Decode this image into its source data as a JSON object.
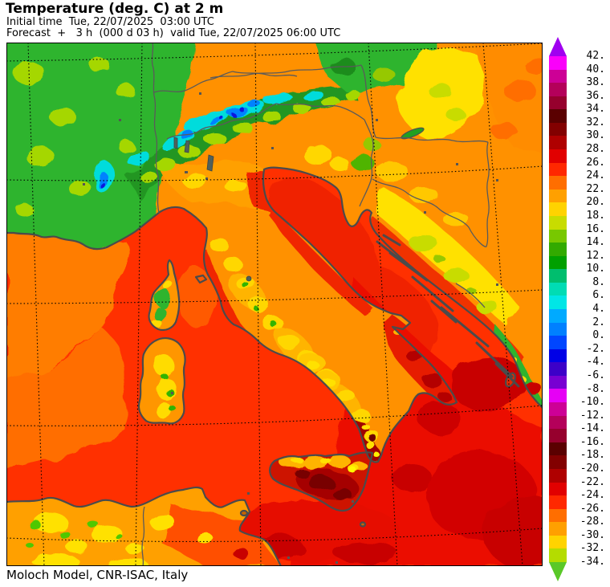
{
  "header": {
    "title": "Temperature (deg. C) at 2 m",
    "initial_time_line": "Initial time  Tue, 22/07/2025  03:00 UTC",
    "forecast_line": "Forecast  +   3 h  (000 d 03 h)  valid Tue, 22/07/2025 06:00 UTC"
  },
  "footer": {
    "credit": "Moloch Model, CNR-ISAC, Italy"
  },
  "colorbar": {
    "unit_hint": "deg. C",
    "labels": [
      "42.",
      "40.",
      "38.",
      "36.",
      "34.",
      "32.",
      "30.",
      "28.",
      "26.",
      "24.",
      "22.",
      "20.",
      "18.",
      "16.",
      "14.",
      "12.",
      "10.",
      "8.",
      "6.",
      "4.",
      "2.",
      "0.",
      "-2.",
      "-4.",
      "-6.",
      "-8.",
      "-10.",
      "-12.",
      "-14.",
      "-16.",
      "-18.",
      "-20.",
      "-22.",
      "-24.",
      "-26.",
      "-28.",
      "-30.",
      "-32.",
      "-34."
    ],
    "segment_colors": [
      "#FA00FA",
      "#CD0096",
      "#B4005A",
      "#96002D",
      "#5A0000",
      "#820000",
      "#AF0000",
      "#E10000",
      "#FF2800",
      "#FF6E00",
      "#FFA000",
      "#FFD300",
      "#C8DC00",
      "#78C800",
      "#32AA00",
      "#00A000",
      "#00BE6E",
      "#00DCB4",
      "#00E6E6",
      "#00AAFF",
      "#0080FF",
      "#0046FF",
      "#0000E6",
      "#3C00C8",
      "#7800D2",
      "#E600F5",
      "#CD0096",
      "#B4005A",
      "#96002D",
      "#5A0000",
      "#820000",
      "#AF0000",
      "#E10000",
      "#FF2800",
      "#FF6E00",
      "#FFA000",
      "#FFD300",
      "#B4DC00"
    ],
    "arrow_top_color": "#A000F0",
    "arrow_bottom_color": "#5AC828"
  },
  "map": {
    "palette": {
      "sea_base_red": "#FF3000",
      "sea_warm_dark_red": "#C80000",
      "sea_cool_orange": "#FF7D00",
      "land_orange": "#FF9100",
      "land_yellow": "#FFE100",
      "land_green": "#2DB42D",
      "alps_cyan": "#00DCDC",
      "alps_blue": "#0082FF",
      "coastline_gray": "#4B4B4B"
    }
  }
}
